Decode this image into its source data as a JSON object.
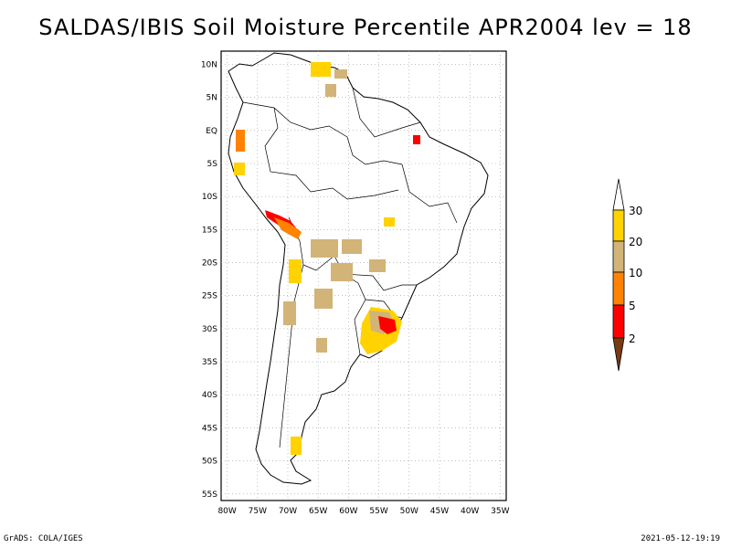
{
  "title": "SALDAS/IBIS Soil Moisture Percentile APR2004 lev = 18",
  "map": {
    "lat_labels": [
      "10N",
      "5N",
      "EQ",
      "5S",
      "10S",
      "15S",
      "20S",
      "25S",
      "30S",
      "35S",
      "40S",
      "45S",
      "50S",
      "55S"
    ],
    "lon_labels": [
      "80W",
      "75W",
      "70W",
      "65W",
      "60W",
      "55W",
      "50W",
      "45W",
      "40W",
      "35W"
    ],
    "lat_range": [
      -56,
      12
    ],
    "lon_range": [
      -81,
      -34
    ],
    "grid": true
  },
  "legend": {
    "labels": [
      "30",
      "20",
      "10",
      "5",
      "2"
    ],
    "colors": {
      "above_30": "#ffffff",
      "20_30": "#ffd200",
      "10_20": "#d2b478",
      "5_10": "#ff8200",
      "2_5": "#ff0000",
      "below_2": "#783c14"
    }
  },
  "footer": {
    "left": "GrADS: COLA/IGES",
    "right": "2021-05-12-19:19"
  }
}
